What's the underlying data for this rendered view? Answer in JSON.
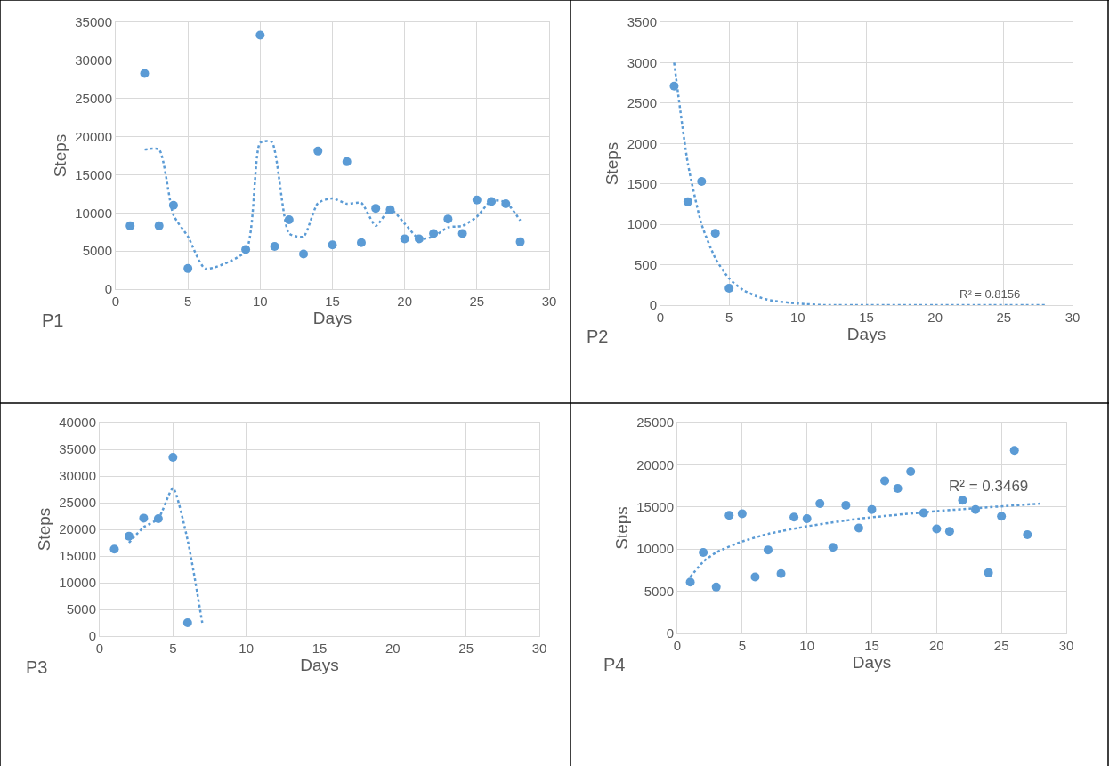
{
  "chart_data": [
    {
      "type": "scatter",
      "xlabel": "Days",
      "ylabel": "Steps",
      "xlim": [
        0,
        30
      ],
      "xticks": [
        0,
        5,
        10,
        15,
        20,
        25,
        30
      ],
      "ylim": [
        0,
        35000
      ],
      "yticks": [
        0,
        5000,
        10000,
        15000,
        20000,
        25000,
        30000,
        35000
      ],
      "grid": true,
      "marker": "circle",
      "annotations": [
        "P1"
      ],
      "series": [
        {
          "color": "#5b9bd5",
          "x": [
            1,
            2,
            3,
            4,
            5,
            9,
            10,
            11,
            12,
            13,
            14,
            15,
            16,
            17,
            18,
            19,
            20,
            21,
            22,
            23,
            24,
            25,
            26,
            27,
            28
          ],
          "values": [
            8300,
            28300,
            8300,
            11000,
            2700,
            5200,
            33300,
            5600,
            9100,
            4600,
            18100,
            5800,
            16700,
            6100,
            10600,
            10400,
            6600,
            6600,
            7300,
            9200,
            7300,
            11700,
            11500,
            11200,
            6200
          ]
        },
        {
          "type": "line",
          "color": "#5b9bd5",
          "line_style": "dotted",
          "marker": "none",
          "x": [
            2,
            3,
            4,
            5,
            6.2,
            9,
            10,
            10.8,
            12,
            13,
            14,
            15,
            16,
            17,
            18,
            19,
            20,
            21,
            22,
            23,
            24,
            25,
            26,
            27,
            28
          ],
          "values": [
            18300,
            18300,
            9700,
            6900,
            2700,
            5000,
            19200,
            19300,
            7300,
            6900,
            11300,
            11900,
            11200,
            11300,
            8300,
            10500,
            8600,
            6600,
            6900,
            8100,
            8300,
            9500,
            11600,
            11400,
            9000
          ]
        }
      ]
    },
    {
      "type": "scatter",
      "xlabel": "Days",
      "ylabel": "Steps",
      "xlim": [
        0,
        30
      ],
      "xticks": [
        0,
        5,
        10,
        15,
        20,
        25,
        30
      ],
      "ylim": [
        0,
        3500
      ],
      "yticks": [
        0,
        500,
        1000,
        1500,
        2000,
        2500,
        3000,
        3500
      ],
      "grid": true,
      "marker": "circle",
      "annotations": [
        "P2",
        "R² = 0.8156"
      ],
      "series": [
        {
          "color": "#5b9bd5",
          "x": [
            1,
            2,
            3,
            4,
            5
          ],
          "values": [
            2710,
            1280,
            1530,
            890,
            210
          ]
        },
        {
          "type": "line",
          "color": "#5b9bd5",
          "line_style": "dotted",
          "marker": "none",
          "x": [
            1,
            2,
            3,
            4,
            5,
            6,
            7,
            8,
            10,
            12,
            15,
            20,
            28
          ],
          "values": [
            3000,
            1750,
            1000,
            580,
            330,
            190,
            110,
            60,
            20,
            0,
            0,
            0,
            0
          ]
        }
      ]
    },
    {
      "type": "scatter",
      "xlabel": "Days",
      "ylabel": "Steps",
      "xlim": [
        0,
        30
      ],
      "xticks": [
        0,
        5,
        10,
        15,
        20,
        25,
        30
      ],
      "ylim": [
        0,
        40000
      ],
      "yticks": [
        0,
        5000,
        10000,
        15000,
        20000,
        25000,
        30000,
        35000,
        40000
      ],
      "grid": true,
      "marker": "circle",
      "annotations": [
        "P3"
      ],
      "series": [
        {
          "color": "#5b9bd5",
          "x": [
            1,
            2,
            3,
            4,
            5,
            6
          ],
          "values": [
            16300,
            18700,
            22100,
            22000,
            33500,
            2500
          ]
        },
        {
          "type": "line",
          "color": "#5b9bd5",
          "line_style": "dotted",
          "marker": "none",
          "x": [
            2,
            3,
            4,
            5,
            6,
            7
          ],
          "values": [
            17500,
            20400,
            22000,
            27700,
            18000,
            2500
          ]
        }
      ]
    },
    {
      "type": "scatter",
      "xlabel": "Days",
      "ylabel": "Steps",
      "xlim": [
        0,
        30
      ],
      "xticks": [
        0,
        5,
        10,
        15,
        20,
        25,
        30
      ],
      "ylim": [
        0,
        25000
      ],
      "yticks": [
        0,
        5000,
        10000,
        15000,
        20000,
        25000
      ],
      "grid": true,
      "marker": "circle",
      "annotations": [
        "P4",
        "R² = 0.3469"
      ],
      "series": [
        {
          "color": "#5b9bd5",
          "x": [
            1,
            2,
            3,
            4,
            5,
            6,
            7,
            8,
            9,
            10,
            11,
            12,
            13,
            14,
            15,
            16,
            17,
            18,
            19,
            20,
            21,
            22,
            23,
            24,
            25,
            26,
            27
          ],
          "values": [
            6100,
            9600,
            5500,
            14000,
            14200,
            6700,
            9900,
            7100,
            13800,
            13600,
            15400,
            10200,
            15200,
            12500,
            14700,
            18100,
            17200,
            19200,
            14300,
            12400,
            12100,
            15800,
            14700,
            7200,
            13900,
            21700,
            11700
          ]
        },
        {
          "type": "line",
          "color": "#5b9bd5",
          "line_style": "dotted",
          "marker": "none",
          "x": [
            1,
            2,
            3,
            5,
            7,
            10,
            14,
            20,
            28
          ],
          "values": [
            6700,
            8500,
            9600,
            10900,
            11800,
            12700,
            13600,
            14500,
            15400
          ]
        }
      ]
    }
  ]
}
